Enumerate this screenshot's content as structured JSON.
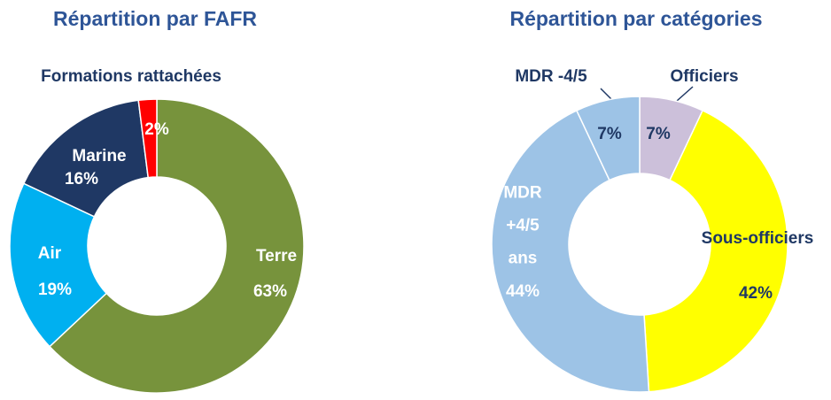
{
  "chart_data": [
    {
      "type": "donut",
      "title": "Répartition par FAFR",
      "categories": [
        "Terre",
        "Air",
        "Marine",
        "Formations rattachées"
      ],
      "values": [
        63,
        19,
        16,
        2
      ],
      "value_labels": [
        "63%",
        "19%",
        "16%",
        "2%"
      ],
      "colors": [
        "#77933c",
        "#00b0f0",
        "#1f3864",
        "#ff0000"
      ]
    },
    {
      "type": "donut",
      "title": "Répartition par catégories",
      "categories": [
        "Officiers",
        "Sous-officiers",
        "MDR +4/5 ans",
        "MDR -4/5"
      ],
      "values": [
        7,
        42,
        44,
        7
      ],
      "value_labels": [
        "7%",
        "42%",
        "44%",
        "7%"
      ],
      "colors": [
        "#ccc0da",
        "#ffff00",
        "#9dc3e6",
        "#9dc3e6"
      ]
    }
  ]
}
